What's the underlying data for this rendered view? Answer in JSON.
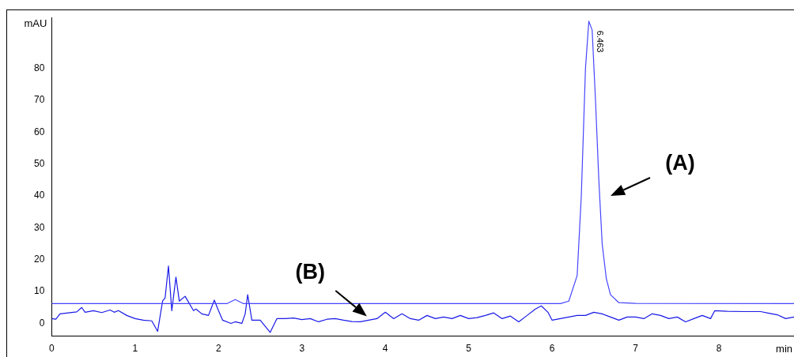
{
  "chart_data": {
    "type": "line",
    "xlabel": "min",
    "ylabel": "mAU",
    "xlim": [
      0,
      8.9
    ],
    "xticks": [
      0,
      1,
      2,
      3,
      4,
      5,
      6,
      7,
      8
    ],
    "ylim": [
      -4,
      96
    ],
    "yticks": [
      0,
      10,
      20,
      30,
      40,
      50,
      60,
      70,
      80
    ],
    "grid": false,
    "legend": false,
    "marker": "none",
    "line_style": "solid",
    "series": [
      {
        "color": "#4545ff",
        "x": [
          0,
          2.1,
          2.2,
          2.3,
          6.1,
          6.2,
          6.3,
          6.35,
          6.4,
          6.44,
          6.48,
          6.52,
          6.56,
          6.6,
          6.65,
          6.7,
          6.8,
          7.0,
          8.9
        ],
        "values": [
          6.2,
          6.2,
          7.5,
          6.2,
          6.2,
          7,
          15,
          40,
          80,
          94.8,
          92,
          70,
          45,
          25,
          14,
          9,
          6.5,
          6.3,
          6.2
        ]
      },
      {
        "color": "#1a1ae6",
        "x": [
          0,
          0.05,
          0.1,
          0.2,
          0.3,
          0.36,
          0.4,
          0.5,
          0.6,
          0.7,
          0.75,
          0.8,
          0.9,
          1.0,
          1.1,
          1.2,
          1.27,
          1.33,
          1.36,
          1.4,
          1.44,
          1.49,
          1.53,
          1.6,
          1.7,
          1.73,
          1.8,
          1.88,
          1.95,
          2.0,
          2.05,
          2.15,
          2.2,
          2.28,
          2.32,
          2.35,
          2.4,
          2.5,
          2.62,
          2.7,
          2.8,
          2.9,
          3.0,
          3.1,
          3.2,
          3.3,
          3.4,
          3.5,
          3.6,
          3.7,
          3.8,
          3.9,
          4.0,
          4.1,
          4.2,
          4.3,
          4.4,
          4.5,
          4.6,
          4.7,
          4.8,
          4.9,
          5.0,
          5.1,
          5.2,
          5.3,
          5.4,
          5.5,
          5.6,
          5.7,
          5.8,
          5.87,
          5.95,
          6.0,
          6.1,
          6.2,
          6.3,
          6.4,
          6.5,
          6.6,
          6.7,
          6.8,
          6.9,
          7.0,
          7.1,
          7.2,
          7.3,
          7.4,
          7.5,
          7.6,
          7.7,
          7.8,
          7.9,
          7.95,
          8.1,
          8.3,
          8.5,
          8.6,
          8.7,
          8.8,
          8.9
        ],
        "values": [
          1.5,
          1.3,
          3,
          3.3,
          3.6,
          5,
          3.5,
          4,
          3.4,
          4.2,
          3.5,
          4,
          2.5,
          1.5,
          1,
          0.8,
          -2.5,
          7,
          8,
          18,
          4,
          14.5,
          7,
          8.5,
          4,
          4.5,
          3,
          2.5,
          7.3,
          4,
          1,
          0,
          0.5,
          0,
          3,
          9,
          1,
          1,
          -2.8,
          1.5,
          1.5,
          1.7,
          1.2,
          1.5,
          0.5,
          1.3,
          1.5,
          1,
          0.6,
          0.5,
          1,
          1.5,
          3.5,
          1.5,
          3,
          1.5,
          1,
          2.5,
          1.5,
          2,
          1.5,
          2.5,
          1.5,
          1.8,
          2.5,
          3.3,
          1.5,
          2.3,
          0.5,
          2.5,
          4.5,
          5.5,
          3.5,
          1,
          1.5,
          2,
          2.5,
          2.5,
          3.5,
          3,
          2,
          1,
          2,
          2,
          1.5,
          3,
          2.5,
          1.5,
          2,
          0.5,
          1.5,
          2.5,
          1.5,
          4,
          3.8,
          3.7,
          3.7,
          3.2,
          2.7,
          1.5,
          2
        ]
      }
    ],
    "annotations": [
      {
        "text": "6.463",
        "x": 6.463,
        "y": 94.8
      },
      "(A)",
      {
        "text": "(B)",
        "x": 3.83,
        "y": 1.1
      }
    ]
  }
}
